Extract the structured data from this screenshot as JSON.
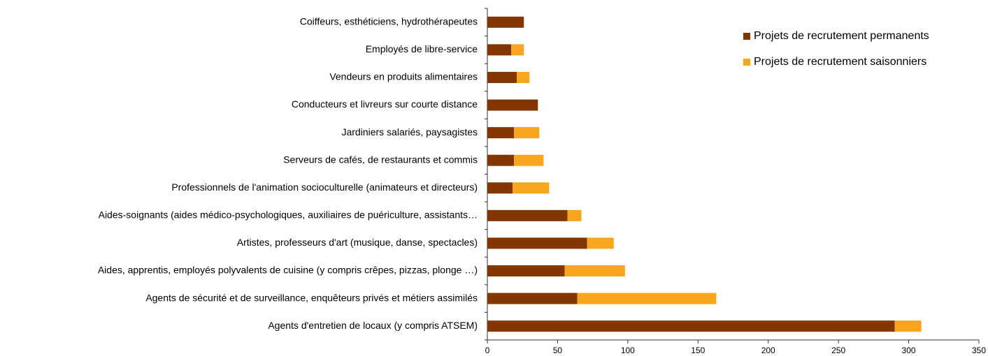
{
  "chart_data": {
    "type": "stacked_barh",
    "categories": [
      "Coiffeurs, esthéticiens, hydrothérapeutes",
      "Employés de libre-service",
      "Vendeurs en produits alimentaires",
      "Conducteurs et livreurs sur courte distance",
      "Jardiniers salariés, paysagistes",
      "Serveurs de cafés, de restaurants et commis",
      "Professionnels de l'animation socioculturelle (animateurs et directeurs)",
      "Aides-soignants (aides médico-psychologiques, auxiliaires de puériculture, assistants…",
      "Artistes, professeurs d'art (musique, danse, spectacles)",
      "Aides, apprentis, employés polyvalents de cuisine (y compris crêpes, pizzas, plonge …)",
      "Agents de sécurité et de surveillance, enquêteurs privés et métiers assimilés",
      "Agents d'entretien de locaux (y compris ATSEM)"
    ],
    "series": [
      {
        "name": "Projets de recrutement permanents",
        "color": "#843600",
        "values": [
          26,
          17,
          21,
          36,
          19,
          19,
          18,
          57,
          71,
          55,
          64,
          290
        ]
      },
      {
        "name": "Projets de recrutement saisonniers",
        "color": "#f8a51f",
        "values": [
          0,
          9,
          9,
          0,
          18,
          21,
          26,
          10,
          19,
          43,
          99,
          19
        ]
      }
    ],
    "xlim": [
      0,
      350
    ],
    "xticks": [
      0,
      50,
      100,
      150,
      200,
      250,
      300,
      350
    ],
    "legend": "upper right"
  }
}
